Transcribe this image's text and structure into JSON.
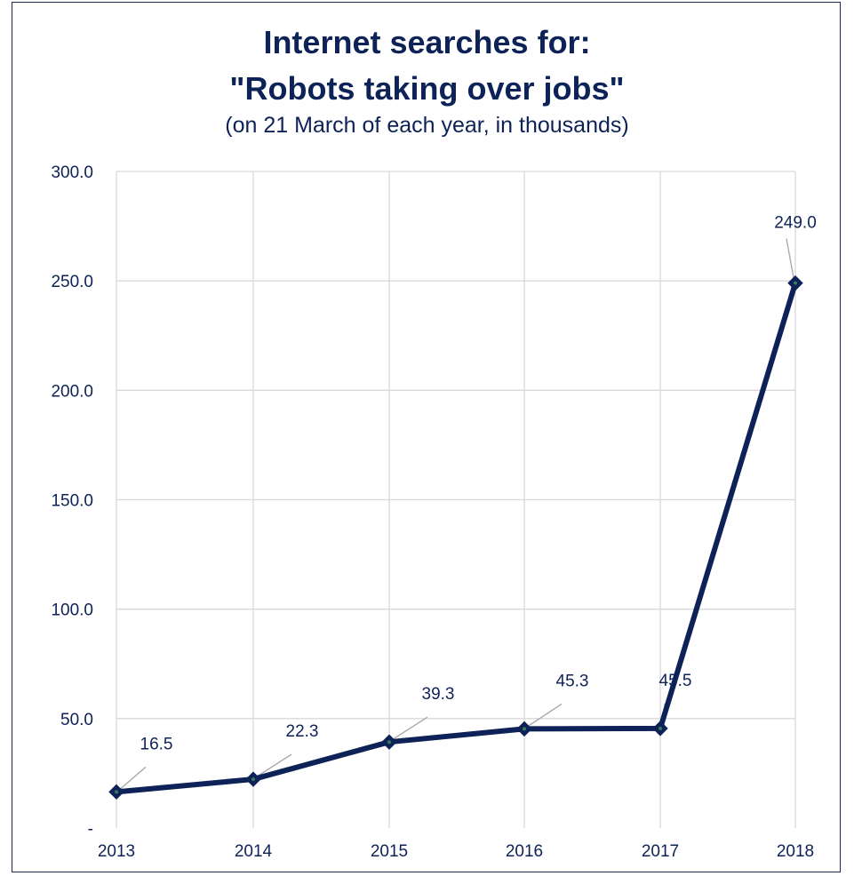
{
  "chart_data": {
    "type": "line",
    "title_line1": "Internet searches for:",
    "title_line2": "\"Robots taking over jobs\"",
    "subtitle": "(on 21 March of each year, in thousands)",
    "categories": [
      "2013",
      "2014",
      "2015",
      "2016",
      "2017",
      "2018"
    ],
    "values": [
      16.5,
      22.3,
      39.3,
      45.3,
      45.5,
      249.0
    ],
    "data_labels": [
      "16.5",
      "22.3",
      "39.3",
      "45.3",
      "45.5",
      "249.0"
    ],
    "ylim": [
      0,
      300
    ],
    "y_ticks": [
      {
        "value": 0,
        "label": "-"
      },
      {
        "value": 50,
        "label": "50.0"
      },
      {
        "value": 100,
        "label": "100.0"
      },
      {
        "value": 150,
        "label": "150.0"
      },
      {
        "value": 200,
        "label": "200.0"
      },
      {
        "value": 250,
        "label": "250.0"
      },
      {
        "value": 300,
        "label": "300.0"
      }
    ],
    "grid": true,
    "colors": {
      "line": "#0d2257",
      "marker_center": "#3a7a5a",
      "grid": "#d9d9d9",
      "text": "#0d2257",
      "leader": "#a6a6a6"
    }
  }
}
